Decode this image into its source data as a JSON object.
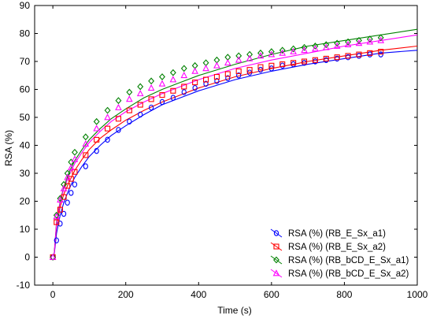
{
  "chart_data": {
    "type": "scatter",
    "title": "",
    "xlabel": "Time (s)",
    "ylabel": "RSA (%)",
    "xlim": [
      -50,
      1000
    ],
    "ylim": [
      -10,
      90
    ],
    "xticks": [
      0,
      200,
      400,
      600,
      800,
      1000
    ],
    "yticks": [
      -10,
      0,
      10,
      20,
      30,
      40,
      50,
      60,
      70,
      80,
      90
    ],
    "grid": false,
    "legend_position": "bottom-right",
    "fit_lines": true,
    "series": [
      {
        "name": "RSA (%) (RB_E_Sx_a1)",
        "color": "#0000ff",
        "marker": "circle",
        "x": [
          0,
          10,
          20,
          30,
          40,
          50,
          60,
          90,
          120,
          150,
          180,
          210,
          240,
          270,
          300,
          330,
          360,
          390,
          420,
          450,
          480,
          510,
          540,
          570,
          600,
          630,
          660,
          690,
          720,
          750,
          780,
          810,
          840,
          870,
          900
        ],
        "y": [
          0,
          6,
          12,
          15.5,
          19.5,
          23,
          26,
          32.5,
          38,
          42,
          45.5,
          48.5,
          51,
          53.5,
          55.5,
          57,
          59,
          60.5,
          62,
          63,
          64,
          65,
          66,
          67,
          67.5,
          68.5,
          69,
          69.5,
          70,
          70.5,
          71,
          71.5,
          72,
          72.5,
          72.5
        ],
        "fit_x": [
          3,
          10,
          20,
          30,
          45,
          60,
          80,
          100,
          130,
          160,
          200,
          250,
          300,
          350,
          400,
          500,
          600,
          700,
          800,
          900,
          1000
        ],
        "fit_y": [
          0,
          8.5,
          15,
          19.5,
          24.5,
          28.5,
          32.5,
          36,
          40,
          43.5,
          47,
          51,
          54.5,
          57,
          59.5,
          63.5,
          66.5,
          69,
          71,
          73,
          74
        ]
      },
      {
        "name": "RSA (%) (RB_E_Sx_a2)",
        "color": "#ff0000",
        "marker": "square",
        "x": [
          0,
          10,
          20,
          30,
          40,
          50,
          60,
          90,
          120,
          150,
          180,
          210,
          240,
          270,
          300,
          330,
          360,
          390,
          420,
          450,
          480,
          510,
          540,
          570,
          600,
          630,
          660,
          690,
          720,
          750,
          780,
          810,
          840,
          870,
          900
        ],
        "y": [
          0,
          12.5,
          17,
          21.5,
          25.5,
          28,
          30.5,
          36.5,
          42,
          46,
          49.5,
          52.5,
          54.5,
          56.5,
          58,
          59.5,
          61,
          62.5,
          63.5,
          64.5,
          65.5,
          66.5,
          67,
          68,
          68.5,
          69,
          69.5,
          70,
          70.5,
          71,
          71.5,
          72,
          72.5,
          73,
          73.5
        ],
        "fit_x": [
          3,
          10,
          20,
          30,
          45,
          60,
          80,
          100,
          130,
          160,
          200,
          250,
          300,
          350,
          400,
          500,
          600,
          700,
          800,
          900,
          1000
        ],
        "fit_y": [
          0,
          11,
          18,
          22.5,
          27,
          31,
          35,
          38.5,
          42.5,
          45.5,
          49,
          52.5,
          55.5,
          58,
          60.5,
          64.5,
          67.5,
          70,
          72,
          74,
          75.5
        ]
      },
      {
        "name": "RSA (%) (RB_bCD_E_Sx_a1)",
        "color": "#008000",
        "marker": "diamond",
        "x": [
          0,
          10,
          20,
          30,
          40,
          50,
          60,
          90,
          120,
          150,
          180,
          210,
          240,
          270,
          300,
          330,
          360,
          390,
          420,
          450,
          480,
          510,
          540,
          570,
          600,
          630,
          660,
          690,
          720,
          750,
          780,
          810,
          840,
          870,
          900
        ],
        "y": [
          0,
          15,
          21,
          26,
          30,
          34,
          37.5,
          43,
          48.5,
          52.5,
          56,
          59,
          61,
          63,
          64.5,
          66,
          67.5,
          68.5,
          69.5,
          70.5,
          71.5,
          72,
          72.5,
          73,
          73.5,
          74,
          74.5,
          75,
          75.5,
          76,
          76.5,
          77,
          77.5,
          78,
          78.5
        ],
        "fit_x": [
          3,
          10,
          20,
          30,
          45,
          60,
          80,
          100,
          130,
          160,
          200,
          250,
          300,
          350,
          400,
          500,
          600,
          700,
          800,
          900,
          1000
        ],
        "fit_y": [
          0,
          12.5,
          20,
          25,
          30.5,
          34.5,
          38.5,
          42,
          46,
          49.5,
          53,
          57,
          60,
          62.5,
          65,
          69,
          72.5,
          75.5,
          77.5,
          79.5,
          81.5
        ]
      },
      {
        "name": "RSA (%) (RB_bCD_E_Sx_a2)",
        "color": "#ff00ff",
        "marker": "triangle",
        "x": [
          0,
          10,
          20,
          30,
          40,
          50,
          60,
          90,
          120,
          150,
          180,
          210,
          240,
          270,
          300,
          330,
          360,
          390,
          420,
          450,
          480,
          510,
          540,
          570,
          600,
          630,
          660,
          690,
          720,
          750,
          780,
          810,
          840,
          870,
          900
        ],
        "y": [
          0,
          14.5,
          20.5,
          24.5,
          28.5,
          32,
          35,
          40.5,
          46,
          50,
          53.5,
          56.5,
          58.5,
          60.5,
          62,
          63.5,
          65,
          66.5,
          67.5,
          68.5,
          69.5,
          70.5,
          71,
          72,
          72.5,
          73,
          73.5,
          74,
          74.5,
          75,
          75.5,
          76,
          76.5,
          77,
          77.5
        ],
        "fit_x": [
          3,
          10,
          20,
          30,
          45,
          60,
          80,
          100,
          130,
          160,
          200,
          250,
          300,
          350,
          400,
          500,
          600,
          700,
          800,
          900,
          1000
        ],
        "fit_y": [
          0,
          12,
          19.5,
          24.5,
          29.5,
          33.5,
          37.5,
          41,
          45,
          48.5,
          52,
          55.5,
          58.5,
          61,
          63.5,
          67.5,
          70.5,
          73,
          75.5,
          77.5,
          79.5
        ]
      }
    ]
  }
}
